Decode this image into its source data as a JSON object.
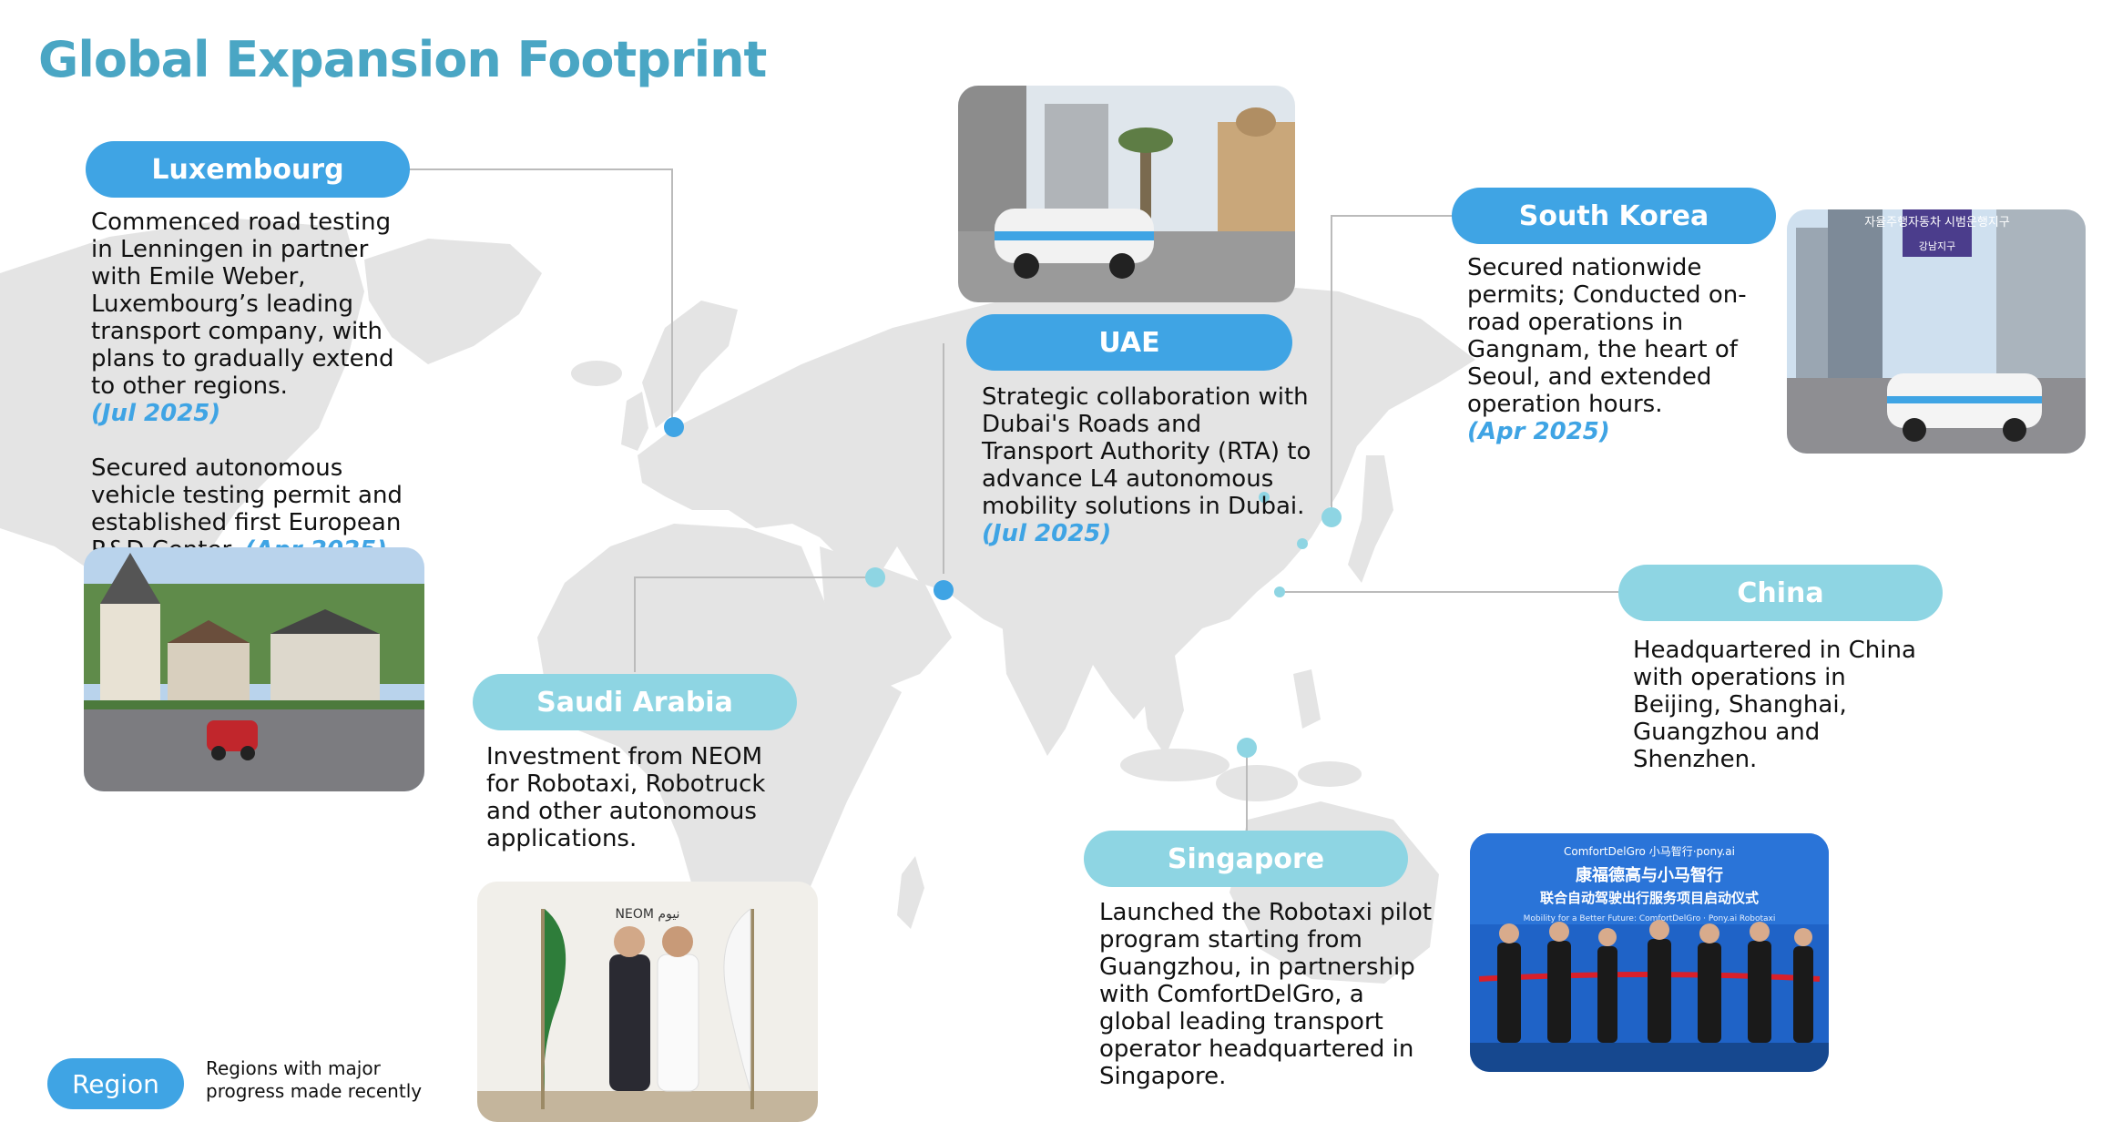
{
  "title": "Global Expansion Footprint",
  "colors": {
    "title": "#4aa6c4",
    "major_region": "#3fa4e4",
    "other_region": "#8ed5e3",
    "date": "#3fa4e4",
    "map": "#e4e4e4",
    "connector": "#bbbbbb"
  },
  "regions": {
    "luxembourg": {
      "name": "Luxembourg",
      "item1_text": "Commenced road testing in Lenningen in partner with Emile Weber, Luxembourg’s leading transport company, with plans to gradually extend to other regions.",
      "item1_date": "(Jul 2025)",
      "item2_text": "Secured autonomous vehicle testing permit and established first European R&D Center.",
      "item2_date": "(Apr 2025)"
    },
    "uae": {
      "name": "UAE",
      "text": "Strategic collaboration with Dubai's Roads and Transport Authority (RTA) to advance L4 autonomous mobility solutions in Dubai.",
      "date": "(Jul 2025)"
    },
    "south_korea": {
      "name": "South Korea",
      "text": "Secured nationwide permits;  Conducted on-road operations in Gangnam, the heart of Seoul, and extended operation hours.",
      "date": "(Apr 2025)"
    },
    "china": {
      "name": "China",
      "text": "Headquartered in China with operations in Beijing, Shanghai, Guangzhou and Shenzhen."
    },
    "saudi_arabia": {
      "name": "Saudi Arabia",
      "text": "Investment from NEOM for Robotaxi, Robotruck and other autonomous applications."
    },
    "singapore": {
      "name": "Singapore",
      "text": "Launched the Robotaxi pilot program starting from Guangzhou, in partnership with ComfortDelGro, a global leading transport operator headquartered in Singapore."
    }
  },
  "photos": {
    "korea_signboard": "자율주행자동차 시범운행지구",
    "korea_sign_sub": "강남지구",
    "neom_logo": "NEOM نيوم",
    "event_brands": "ComfortDelGro 小马智行·pony.ai",
    "event_title_1": "康福德高与小马智行",
    "event_title_2": "联合自动驾驶出行服务项目启动仪式",
    "event_sub": "Mobility for a Better Future: ComfortDelGro · Pony.ai Robotaxi"
  },
  "legend": {
    "label": "Region",
    "description_line1": "Regions with major",
    "description_line2": "progress made recently"
  }
}
